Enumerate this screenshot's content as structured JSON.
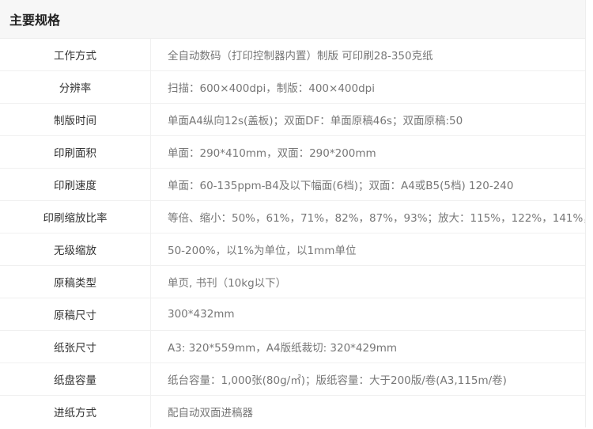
{
  "title": "主要规格",
  "rows": [
    {
      "label": "工作方式",
      "value": "全自动数码（打印控制器内置）制版  可印刷28-350克纸"
    },
    {
      "label": "分辨率",
      "value": "扫描：600×400dpi，制版：400×400dpi"
    },
    {
      "label": "制版时间",
      "value": "单面A4纵向12s(盖板)；双面DF：单面原稿46s；双面原稿:50"
    },
    {
      "label": "印刷面积",
      "value": "单面：290*410mm，双面：290*200mm"
    },
    {
      "label": "印刷速度",
      "value": "单面：60-135ppm-B4及以下幅面(6档)；双面：A4或B5(5档) 120-240"
    },
    {
      "label": "印刷缩放比率",
      "value": "等倍、缩小：50%，61%，71%，82%，87%，93%；放大：115%，122%，141%，"
    },
    {
      "label": "无级缩放",
      "value": "50-200%，以1%为单位，以1mm单位"
    },
    {
      "label": "原稿类型",
      "value": "单页, 书刊（10kg以下）"
    },
    {
      "label": "原稿尺寸",
      "value": "300*432mm"
    },
    {
      "label": "纸张尺寸",
      "value": "A3: 320*559mm，A4版纸裁切: 320*429mm"
    },
    {
      "label": "纸盘容量",
      "value": "纸台容量：1,000张(80g/㎡)；版纸容量：大于200版/卷(A3,115m/卷)"
    },
    {
      "label": "进纸方式",
      "value": "配自动双面进稿器"
    }
  ]
}
